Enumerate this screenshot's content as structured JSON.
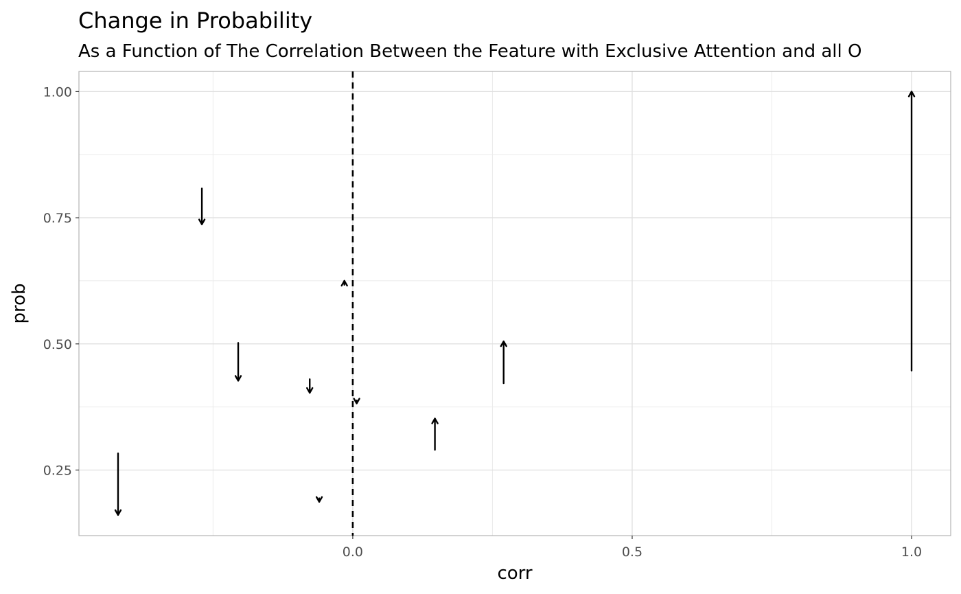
{
  "chart_data": {
    "type": "arrow",
    "title": "Change in Probability",
    "subtitle": "As a Function of The Correlation Between the Feature with Exclusive Attention and all O",
    "xlabel": "corr",
    "ylabel": "prob",
    "xlim": [
      -0.49,
      1.07
    ],
    "ylim": [
      0.12,
      1.04
    ],
    "x_ticks": [
      0.0,
      0.5,
      1.0
    ],
    "x_tick_labels": [
      "0.0",
      "0.5",
      "1.0"
    ],
    "y_ticks": [
      0.25,
      0.5,
      0.75,
      1.0
    ],
    "y_tick_labels": [
      "0.25",
      "0.50",
      "0.75",
      "1.00"
    ],
    "x_minor": [
      -0.25,
      0.25,
      0.75
    ],
    "y_minor": [
      0.375,
      0.625,
      0.875
    ],
    "grid": true,
    "vline": {
      "x": 0.0,
      "style": "dashed"
    },
    "arrows": [
      {
        "x": -0.42,
        "y_start": 0.283,
        "y_end": 0.161
      },
      {
        "x": -0.27,
        "y_start": 0.808,
        "y_end": 0.737
      },
      {
        "x": -0.205,
        "y_start": 0.502,
        "y_end": 0.427
      },
      {
        "x": -0.077,
        "y_start": 0.43,
        "y_end": 0.403
      },
      {
        "x": -0.06,
        "y_start": 0.194,
        "y_end": 0.187
      },
      {
        "x": -0.015,
        "y_start": 0.617,
        "y_end": 0.625
      },
      {
        "x": 0.007,
        "y_start": 0.388,
        "y_end": 0.382
      },
      {
        "x": 0.147,
        "y_start": 0.29,
        "y_end": 0.352
      },
      {
        "x": 0.27,
        "y_start": 0.422,
        "y_end": 0.505
      },
      {
        "x": 1.0,
        "y_start": 0.447,
        "y_end": 1.0
      }
    ]
  }
}
